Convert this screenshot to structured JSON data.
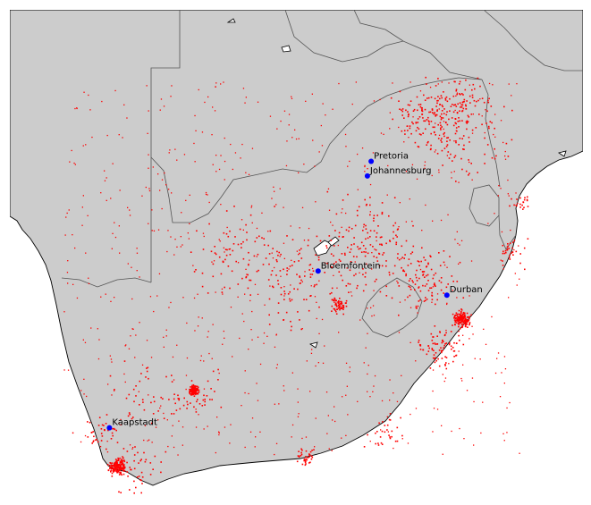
{
  "map": {
    "land_color": "#cccccc",
    "sea_color": "#ffffff",
    "coastline_color": "#000000",
    "border_color": "#555555",
    "point_color": "#ff0000",
    "city_marker_color": "#0000ff",
    "cities": [
      {
        "id": "pretoria",
        "name": "Pretoria",
        "lat": -25.75,
        "lon": 28.19
      },
      {
        "id": "johannesburg",
        "name": "Johannesburg",
        "lat": -26.2,
        "lon": 28.05
      },
      {
        "id": "bloemfontein",
        "name": "Bloemfontein",
        "lat": -29.12,
        "lon": 26.21
      },
      {
        "id": "durban",
        "name": "Durban",
        "lat": -29.86,
        "lon": 31.02
      },
      {
        "id": "kaapstadt",
        "name": "Kaapstadt",
        "lat": -33.93,
        "lon": 18.42
      }
    ]
  }
}
